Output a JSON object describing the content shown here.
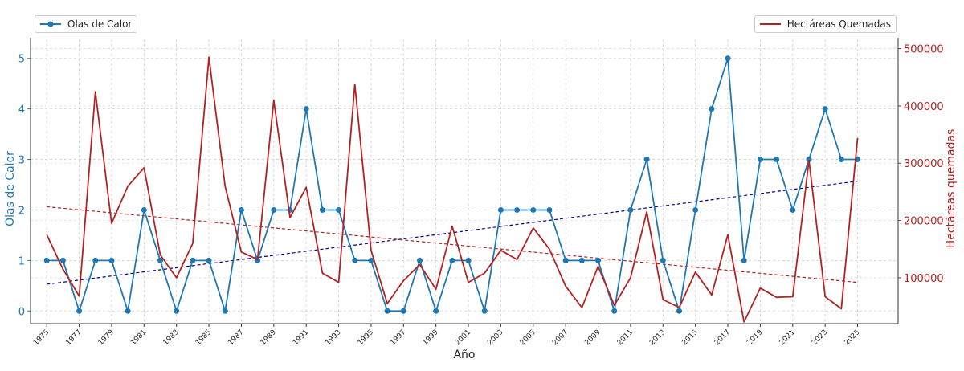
{
  "chart_data": {
    "type": "line",
    "xlabel": "Año",
    "ylabel_left": "Olas de Calor",
    "ylabel_right": "Hectáreas quemadas",
    "x": [
      1975,
      1976,
      1977,
      1978,
      1979,
      1980,
      1981,
      1982,
      1983,
      1984,
      1985,
      1986,
      1987,
      1988,
      1989,
      1990,
      1991,
      1992,
      1993,
      1994,
      1995,
      1996,
      1997,
      1998,
      1999,
      2000,
      2001,
      2002,
      2003,
      2004,
      2005,
      2006,
      2007,
      2008,
      2009,
      2010,
      2011,
      2012,
      2013,
      2014,
      2015,
      2016,
      2017,
      2018,
      2019,
      2020,
      2021,
      2022,
      2023,
      2024,
      2025
    ],
    "xticks": [
      "1975",
      "1977",
      "1979",
      "1981",
      "1983",
      "1985",
      "1987",
      "1989",
      "1991",
      "1993",
      "1995",
      "1997",
      "1999",
      "2001",
      "2003",
      "2005",
      "2007",
      "2009",
      "2011",
      "2013",
      "2015",
      "2017",
      "2019",
      "2021",
      "2023",
      "2025"
    ],
    "xlim": [
      1974,
      2027.5
    ],
    "left_axis": {
      "ylim": [
        -0.25,
        5.25
      ],
      "ticks": [
        "0",
        "1",
        "2",
        "3",
        "4",
        "5"
      ],
      "color": "#1f77b4"
    },
    "right_axis": {
      "ylim": [
        20000,
        505000
      ],
      "ticks": [
        "100000",
        "200000",
        "300000",
        "400000",
        "500000"
      ],
      "color": "#b22222"
    },
    "grid": true,
    "series": [
      {
        "name": "Olas de Calor",
        "axis": "left",
        "color": "#1f77b4",
        "marker": "circle",
        "values": [
          1,
          1,
          0,
          1,
          1,
          0,
          2,
          1,
          0,
          1,
          1,
          0,
          2,
          1,
          2,
          2,
          4,
          2,
          2,
          1,
          1,
          0,
          0,
          1,
          0,
          1,
          1,
          0,
          2,
          2,
          2,
          2,
          1,
          1,
          1,
          0,
          2,
          3,
          1,
          0,
          2,
          4,
          5,
          1,
          3,
          3,
          2,
          3,
          4,
          3,
          3
        ]
      },
      {
        "name": "Hectáreas Quemadas",
        "axis": "right",
        "color": "#b22222",
        "marker": "none",
        "values": [
          175000,
          115000,
          68000,
          425000,
          195000,
          260000,
          292000,
          140000,
          100000,
          160000,
          485000,
          260000,
          145000,
          132000,
          410000,
          205000,
          258000,
          108000,
          92000,
          438000,
          148000,
          55000,
          95000,
          123000,
          80000,
          190000,
          92000,
          108000,
          148000,
          132000,
          187000,
          150000,
          85000,
          48000,
          120000,
          52000,
          100000,
          215000,
          62000,
          48000,
          110000,
          70000,
          175000,
          23000,
          82000,
          66000,
          67000,
          305000,
          67000,
          46000,
          344000
        ]
      }
    ],
    "trendlines": [
      {
        "axis": "left",
        "color": "#00008b",
        "from": [
          1975,
          0.53
        ],
        "to": [
          2025,
          2.57
        ]
      },
      {
        "axis": "right",
        "color": "#b22222",
        "from": [
          1975,
          224000
        ],
        "to": [
          2025,
          92000
        ]
      }
    ],
    "legends": [
      {
        "label": "Olas de Calor",
        "placement": "top-left"
      },
      {
        "label": "Hectáreas Quemadas",
        "placement": "top-right"
      }
    ]
  }
}
